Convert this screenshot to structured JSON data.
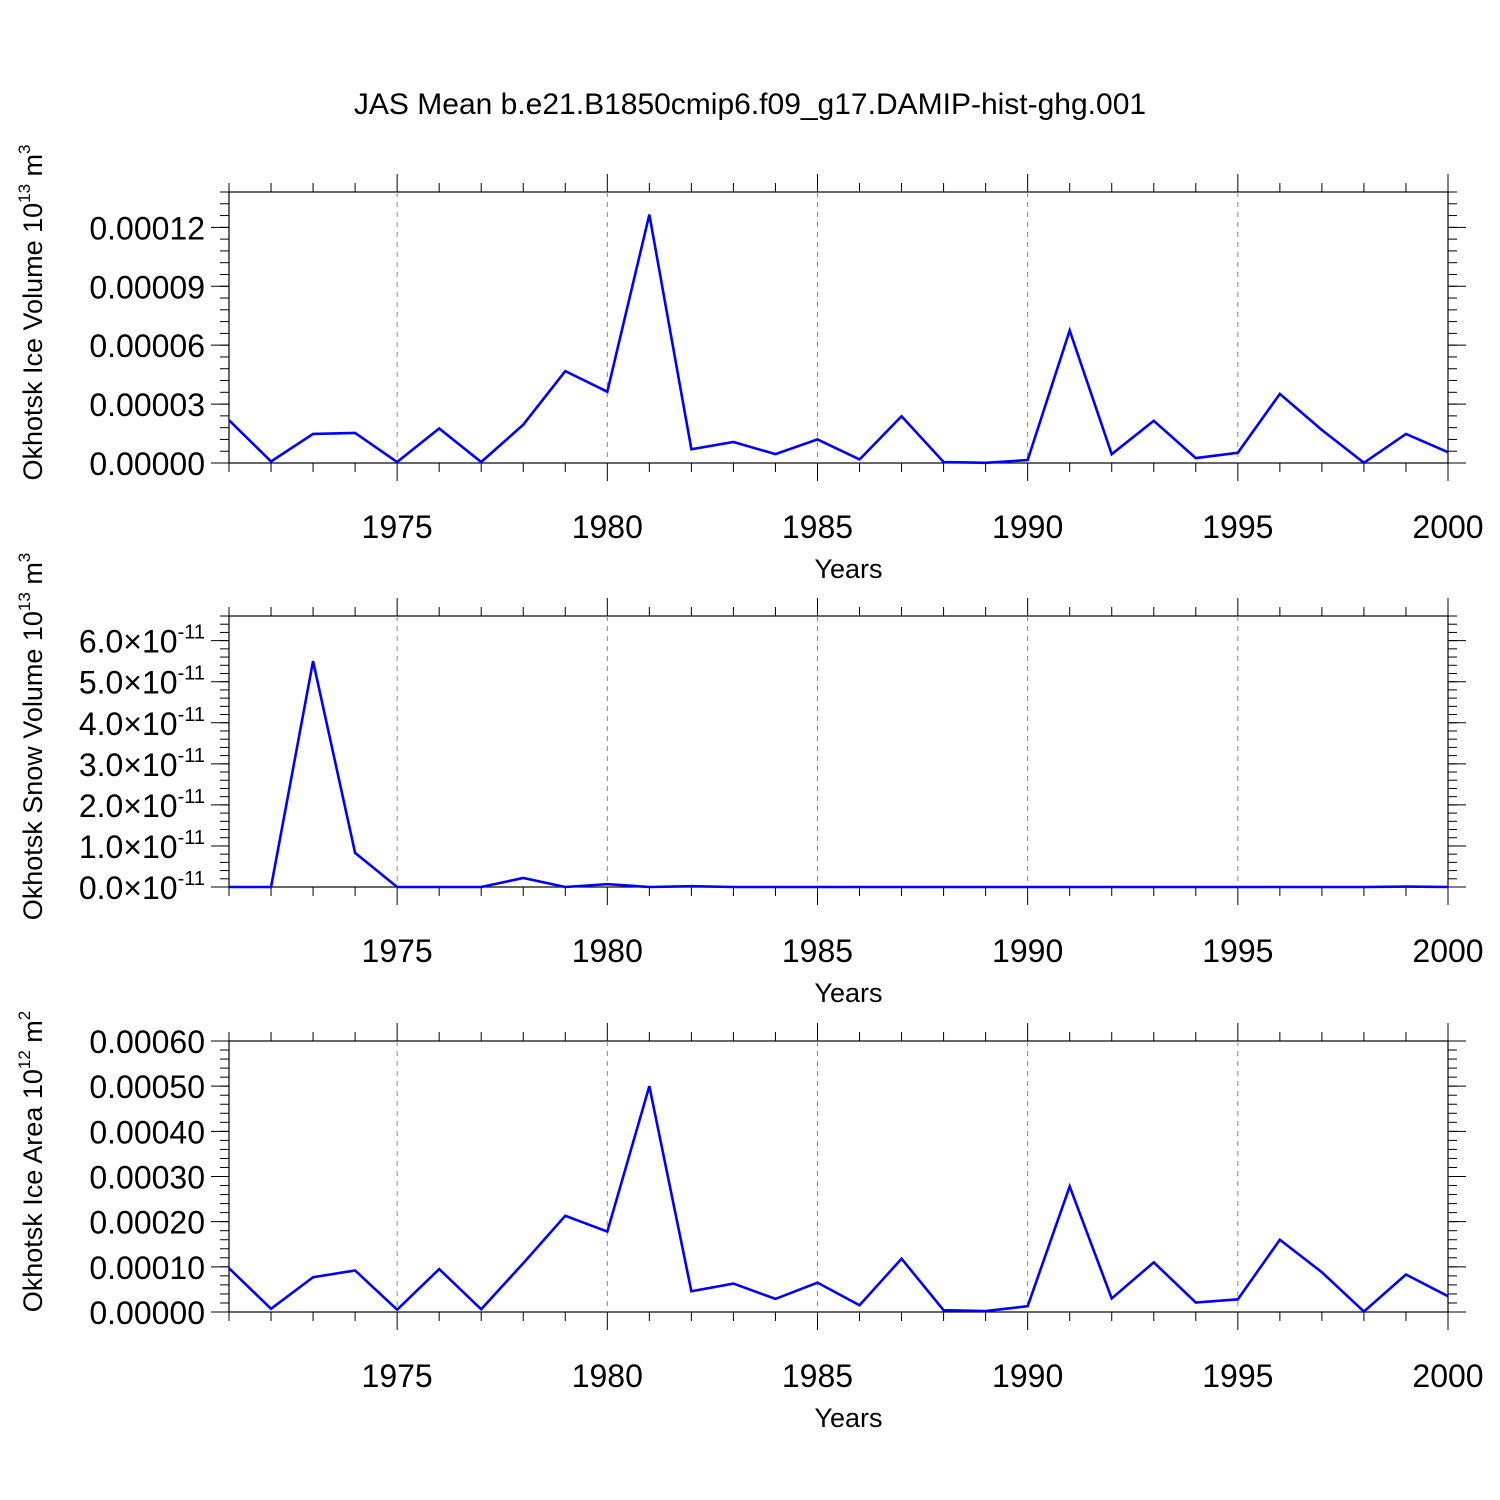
{
  "figure": {
    "title": "JAS Mean b.e21.B1850cmip6.f09_g17.DAMIP-hist-ghg.001",
    "line_color": "#0000ff"
  },
  "chart_data": [
    {
      "type": "line",
      "xlabel": "Years",
      "ylabel": "Okhotsk Ice Volume 10",
      "ylabel_sup": "13",
      "ylabel_unit": " m",
      "ylabel_unit_sup": "3",
      "xlim": [
        1971,
        2000
      ],
      "ylim": [
        0,
        0.000138
      ],
      "xticks": [
        1975,
        1980,
        1985,
        1990,
        1995,
        2000
      ],
      "yticks": [
        0,
        3e-05,
        6e-05,
        9e-05,
        0.00012
      ],
      "ytick_labels": [
        "0.00000",
        "0.00003",
        "0.00006",
        "0.00009",
        "0.00012"
      ],
      "x": [
        1971,
        1972,
        1973,
        1974,
        1975,
        1976,
        1977,
        1978,
        1979,
        1980,
        1981,
        1982,
        1983,
        1984,
        1985,
        1986,
        1987,
        1988,
        1989,
        1990,
        1991,
        1992,
        1993,
        1994,
        1995,
        1996,
        1997,
        1998,
        1999,
        2000
      ],
      "series": [
        {
          "name": "Okhotsk Ice Volume",
          "values": [
            2.18e-05,
            8e-07,
            1.48e-05,
            1.53e-05,
            5e-07,
            1.76e-05,
            5e-07,
            1.95e-05,
            4.68e-05,
            3.63e-05,
            0.0001265,
            7e-06,
            1.07e-05,
            4.5e-06,
            1.2e-05,
            1.8e-06,
            2.38e-05,
            5e-07,
            1e-07,
            1.5e-06,
            6.75e-05,
            4.5e-06,
            2.15e-05,
            2.5e-06,
            5.2e-06,
            3.52e-05,
            1.68e-05,
            1e-07,
            1.48e-05,
            5.5e-06
          ]
        }
      ]
    },
    {
      "type": "line",
      "xlabel": "Years",
      "ylabel": "Okhotsk Snow Volume 10",
      "ylabel_sup": "13",
      "ylabel_unit": " m",
      "ylabel_unit_sup": "3",
      "xlim": [
        1971,
        2000
      ],
      "ylim": [
        0,
        6.6e-11
      ],
      "xticks": [
        1975,
        1980,
        1985,
        1990,
        1995,
        2000
      ],
      "yticks": [
        0,
        1e-11,
        2e-11,
        3e-11,
        4e-11,
        5e-11,
        6e-11
      ],
      "ytick_mantissas": [
        "0.0",
        "1.0",
        "2.0",
        "3.0",
        "4.0",
        "5.0",
        "6.0"
      ],
      "ytick_times": "×10",
      "ytick_exponent": "-11",
      "x": [
        1971,
        1972,
        1973,
        1974,
        1975,
        1976,
        1977,
        1978,
        1979,
        1980,
        1981,
        1982,
        1983,
        1984,
        1985,
        1986,
        1987,
        1988,
        1989,
        1990,
        1991,
        1992,
        1993,
        1994,
        1995,
        1996,
        1997,
        1998,
        1999,
        2000
      ],
      "series": [
        {
          "name": "Okhotsk Snow Volume",
          "values": [
            0,
            0,
            5.5e-11,
            8.3e-12,
            0,
            0,
            0,
            2.2e-12,
            0,
            7e-13,
            0,
            2e-13,
            0,
            0,
            0,
            0,
            0,
            0,
            0,
            0,
            0,
            0,
            0,
            0,
            0,
            0,
            0,
            0,
            1e-13,
            0
          ]
        }
      ]
    },
    {
      "type": "line",
      "xlabel": "Years",
      "ylabel": "Okhotsk Ice Area 10",
      "ylabel_sup": "12",
      "ylabel_unit": " m",
      "ylabel_unit_sup": "2",
      "xlim": [
        1971,
        2000
      ],
      "ylim": [
        0,
        0.0006
      ],
      "xticks": [
        1975,
        1980,
        1985,
        1990,
        1995,
        2000
      ],
      "yticks": [
        0,
        0.0001,
        0.0002,
        0.0003,
        0.0004,
        0.0005,
        0.0006
      ],
      "ytick_labels": [
        "0.00000",
        "0.00010",
        "0.00020",
        "0.00030",
        "0.00040",
        "0.00050",
        "0.00060"
      ],
      "x": [
        1971,
        1972,
        1973,
        1974,
        1975,
        1976,
        1977,
        1978,
        1979,
        1980,
        1981,
        1982,
        1983,
        1984,
        1985,
        1986,
        1987,
        1988,
        1989,
        1990,
        1991,
        1992,
        1993,
        1994,
        1995,
        1996,
        1997,
        1998,
        1999,
        2000
      ],
      "series": [
        {
          "name": "Okhotsk Ice Area",
          "values": [
            9.7e-05,
            7e-06,
            7.7e-05,
            9.2e-05,
            5e-06,
            9.5e-05,
            6e-06,
            0.000108,
            0.000213,
            0.000178,
            0.0005,
            4.6e-05,
            6.3e-05,
            2.9e-05,
            6.5e-05,
            1.5e-05,
            0.000118,
            4e-06,
            2e-06,
            1.3e-05,
            0.000278,
            3e-05,
            0.00011,
            2.1e-05,
            2.8e-05,
            0.00016,
            8.8e-05,
            1e-06,
            8.3e-05,
            3.5e-05
          ]
        }
      ]
    }
  ]
}
